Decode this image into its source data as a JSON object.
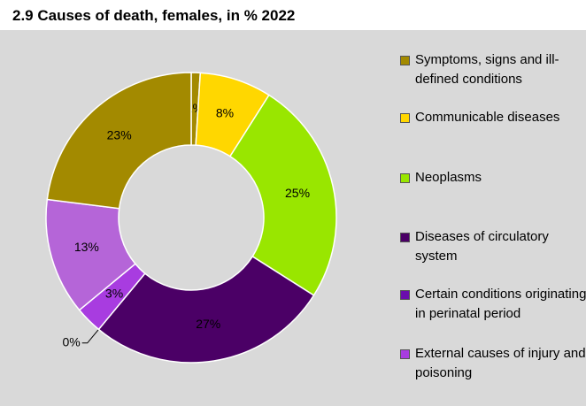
{
  "chart_data": {
    "type": "donut",
    "title": "2.9  Causes of death, females, in % 2022",
    "categories": [
      "Symptoms, signs and ill-defined conditions",
      "Communicable diseases",
      "Neoplasms",
      "Diseases of circulatory system",
      "Certain conditions originating in perinatal period",
      "External causes of injury and poisoning",
      null,
      null
    ],
    "values": [
      1,
      8,
      25,
      27,
      0,
      3,
      13,
      23
    ],
    "value_labels": [
      "1%",
      "8%",
      "25%",
      "27%",
      "0%",
      "3%",
      "13%",
      "23%"
    ],
    "colors": [
      "#a38a00",
      "#ffd700",
      "#99e600",
      "#4b0066",
      "#6a0dad",
      "#a83ce0",
      "#b565d8",
      "#a38a00"
    ],
    "legend": "right"
  }
}
